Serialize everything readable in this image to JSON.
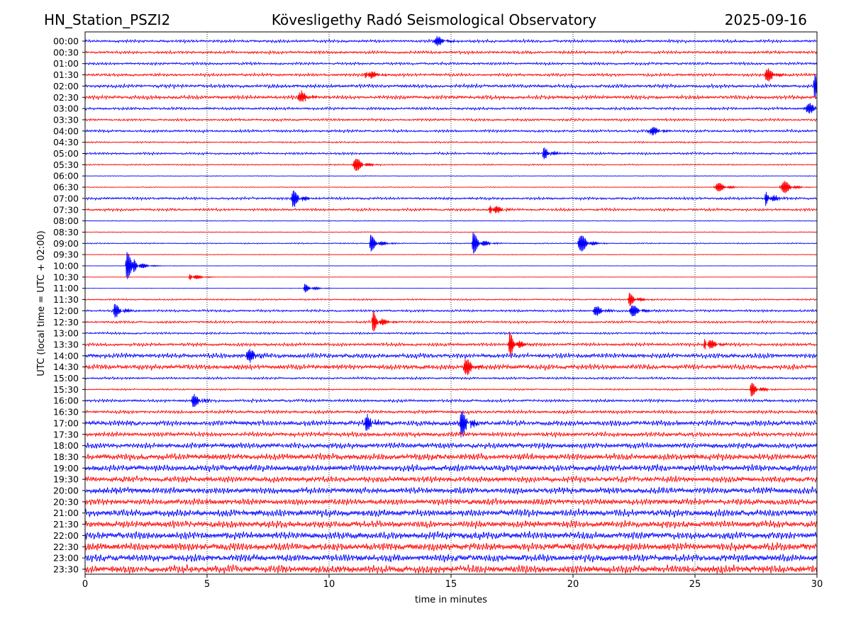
{
  "header": {
    "station": "HN_Station_PSZI2",
    "observatory": "Kövesligethy Radó Seismological Observatory",
    "date": "2025-09-16"
  },
  "chart_data": {
    "type": "line",
    "title": "Kövesligethy Radó Seismological Observatory",
    "xlabel": "time in minutes",
    "ylabel": "UTC (local time = UTC + 02:00)",
    "xlim": [
      0,
      30
    ],
    "x_ticks": [
      "0",
      "5",
      "10",
      "15",
      "20",
      "25",
      "30"
    ],
    "grid": "vertical dotted lines at every 5 minutes",
    "trace_colors": [
      "#0000ff",
      "#ff0000"
    ],
    "traces": [
      {
        "label": "00:00",
        "activity": 0.55,
        "events": [
          {
            "t": 14.3,
            "a": 1.2
          }
        ]
      },
      {
        "label": "00:30",
        "activity": 0.55,
        "events": []
      },
      {
        "label": "01:00",
        "activity": 0.5,
        "events": []
      },
      {
        "label": "01:30",
        "activity": 0.55,
        "events": [
          {
            "t": 11.5,
            "a": 1.2
          },
          {
            "t": 27.9,
            "a": 1.4
          }
        ]
      },
      {
        "label": "02:00",
        "activity": 0.65,
        "events": [
          {
            "t": 29.9,
            "a": 2.0
          }
        ]
      },
      {
        "label": "02:30",
        "activity": 0.7,
        "events": [
          {
            "t": 8.7,
            "a": 1.4
          }
        ]
      },
      {
        "label": "03:00",
        "activity": 0.5,
        "events": [
          {
            "t": 29.5,
            "a": 1.5
          }
        ]
      },
      {
        "label": "03:30",
        "activity": 0.45,
        "events": []
      },
      {
        "label": "04:00",
        "activity": 0.5,
        "events": [
          {
            "t": 23.1,
            "a": 1.2
          }
        ]
      },
      {
        "label": "04:30",
        "activity": 0.3,
        "events": []
      },
      {
        "label": "05:00",
        "activity": 0.45,
        "events": [
          {
            "t": 18.8,
            "a": 1.0
          }
        ]
      },
      {
        "label": "05:30",
        "activity": 0.25,
        "events": [
          {
            "t": 11.0,
            "a": 1.6
          }
        ]
      },
      {
        "label": "06:00",
        "activity": 0.12,
        "events": []
      },
      {
        "label": "06:30",
        "activity": 0.15,
        "events": [
          {
            "t": 25.8,
            "a": 1.3
          },
          {
            "t": 28.5,
            "a": 1.8
          }
        ]
      },
      {
        "label": "07:00",
        "activity": 0.5,
        "events": [
          {
            "t": 8.5,
            "a": 1.5
          },
          {
            "t": 27.9,
            "a": 1.3
          }
        ]
      },
      {
        "label": "07:30",
        "activity": 0.5,
        "events": [
          {
            "t": 16.6,
            "a": 1.3
          }
        ]
      },
      {
        "label": "08:00",
        "activity": 0.15,
        "events": []
      },
      {
        "label": "08:30",
        "activity": 0.15,
        "events": []
      },
      {
        "label": "09:00",
        "activity": 0.22,
        "events": [
          {
            "t": 11.7,
            "a": 1.4
          },
          {
            "t": 15.9,
            "a": 1.8
          },
          {
            "t": 20.2,
            "a": 2.2
          }
        ]
      },
      {
        "label": "09:30",
        "activity": 0.12,
        "events": []
      },
      {
        "label": "10:00",
        "activity": 0.08,
        "events": [
          {
            "t": 1.7,
            "a": 2.4
          },
          {
            "t": 2.0,
            "a": 1.2
          }
        ]
      },
      {
        "label": "10:30",
        "activity": 0.06,
        "events": [
          {
            "t": 4.3,
            "a": 0.8
          }
        ]
      },
      {
        "label": "11:00",
        "activity": 0.05,
        "events": [
          {
            "t": 9.0,
            "a": 0.7
          }
        ]
      },
      {
        "label": "11:30",
        "activity": 0.3,
        "events": [
          {
            "t": 22.3,
            "a": 1.1
          }
        ]
      },
      {
        "label": "12:00",
        "activity": 0.45,
        "events": [
          {
            "t": 1.2,
            "a": 1.2
          },
          {
            "t": 20.8,
            "a": 1.3
          },
          {
            "t": 22.3,
            "a": 1.6
          }
        ]
      },
      {
        "label": "12:30",
        "activity": 0.45,
        "events": [
          {
            "t": 11.8,
            "a": 1.8
          }
        ]
      },
      {
        "label": "13:00",
        "activity": 0.4,
        "events": []
      },
      {
        "label": "13:30",
        "activity": 0.6,
        "events": [
          {
            "t": 17.4,
            "a": 2.0
          },
          {
            "t": 25.4,
            "a": 1.6
          }
        ]
      },
      {
        "label": "14:00",
        "activity": 0.9,
        "events": [
          {
            "t": 6.6,
            "a": 1.6
          }
        ]
      },
      {
        "label": "14:30",
        "activity": 0.95,
        "events": [
          {
            "t": 15.5,
            "a": 2.0
          }
        ]
      },
      {
        "label": "15:00",
        "activity": 0.45,
        "events": []
      },
      {
        "label": "15:30",
        "activity": 0.3,
        "events": [
          {
            "t": 27.3,
            "a": 1.2
          }
        ]
      },
      {
        "label": "16:00",
        "activity": 0.55,
        "events": [
          {
            "t": 4.4,
            "a": 1.2
          }
        ]
      },
      {
        "label": "16:30",
        "activity": 0.6,
        "events": []
      },
      {
        "label": "17:00",
        "activity": 1.0,
        "events": [
          {
            "t": 15.4,
            "a": 2.3
          },
          {
            "t": 11.5,
            "a": 1.4
          }
        ]
      },
      {
        "label": "17:30",
        "activity": 0.85,
        "events": []
      },
      {
        "label": "18:00",
        "activity": 1.05,
        "events": []
      },
      {
        "label": "18:30",
        "activity": 1.2,
        "events": []
      },
      {
        "label": "19:00",
        "activity": 1.2,
        "events": []
      },
      {
        "label": "19:30",
        "activity": 1.1,
        "events": []
      },
      {
        "label": "20:00",
        "activity": 1.2,
        "events": []
      },
      {
        "label": "20:30",
        "activity": 1.15,
        "events": []
      },
      {
        "label": "21:00",
        "activity": 1.35,
        "events": []
      },
      {
        "label": "21:30",
        "activity": 1.3,
        "events": []
      },
      {
        "label": "22:00",
        "activity": 1.4,
        "events": []
      },
      {
        "label": "22:30",
        "activity": 1.45,
        "events": []
      },
      {
        "label": "23:00",
        "activity": 1.35,
        "events": []
      },
      {
        "label": "23:30",
        "activity": 1.5,
        "events": []
      }
    ]
  }
}
